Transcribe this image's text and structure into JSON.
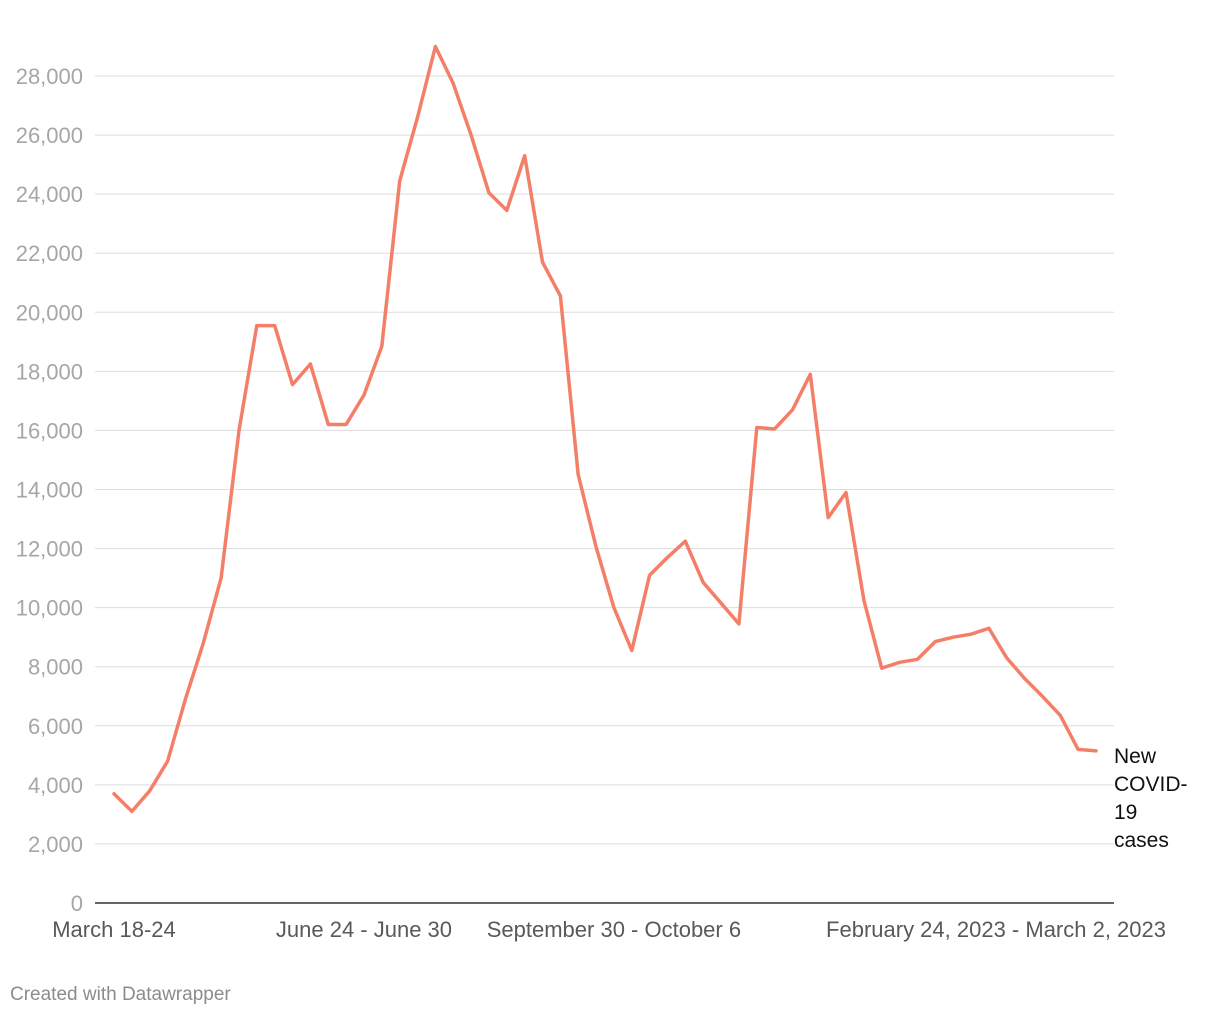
{
  "chart_data": {
    "type": "line",
    "title": "",
    "xlabel": "",
    "ylabel": "",
    "ylim": [
      0,
      29000
    ],
    "y_ticks": [
      0,
      2000,
      4000,
      6000,
      8000,
      10000,
      12000,
      14000,
      16000,
      18000,
      20000,
      22000,
      24000,
      26000,
      28000
    ],
    "y_tick_labels": [
      "0",
      "2,000",
      "4,000",
      "6,000",
      "8,000",
      "10,000",
      "12,000",
      "14,000",
      "16,000",
      "18,000",
      "20,000",
      "22,000",
      "24,000",
      "26,000",
      "28,000"
    ],
    "x_tick_labels": [
      {
        "index": 0,
        "label": "March 18-24"
      },
      {
        "index": 14,
        "label": "June 24 - June 30"
      },
      {
        "index": 28,
        "label": "September 30 - October 6"
      },
      {
        "index": 44,
        "label": "February 24, 2023 - March 2, 2023"
      }
    ],
    "grid": true,
    "series": [
      {
        "name": "New COVID-19 cases",
        "color": "#f47f69",
        "values": [
          3700,
          3100,
          3800,
          4800,
          6900,
          8800,
          11000,
          16000,
          19550,
          19550,
          17550,
          18250,
          16200,
          16200,
          17200,
          18850,
          24450,
          26600,
          29950,
          27750,
          26000,
          24050,
          23450,
          25300,
          21700,
          20550,
          14500,
          12050,
          10000,
          8550,
          11100,
          11700,
          12250,
          10850,
          10150,
          9450,
          16100,
          16050,
          16700,
          17900,
          13050,
          13900,
          10250,
          7950,
          8150,
          8250,
          8850,
          9000,
          9100,
          9300,
          8300,
          7600,
          7000,
          6350,
          5200,
          5150
        ]
      }
    ]
  },
  "series_label_lines": [
    "New",
    "COVID-",
    "19",
    "cases"
  ],
  "footer": {
    "credit": "Created with Datawrapper"
  }
}
